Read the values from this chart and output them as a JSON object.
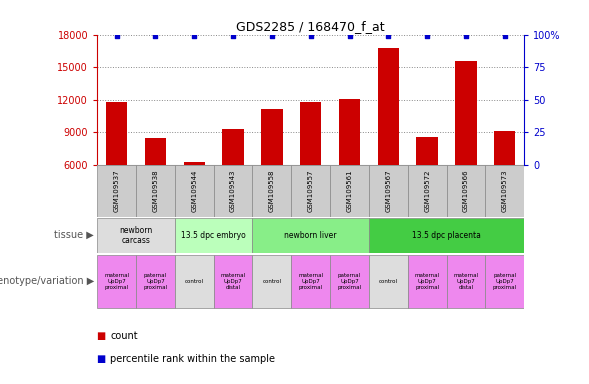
{
  "title": "GDS2285 / 168470_f_at",
  "samples": [
    "GSM109537",
    "GSM109538",
    "GSM109544",
    "GSM109543",
    "GSM109558",
    "GSM109557",
    "GSM109561",
    "GSM109567",
    "GSM109572",
    "GSM109566",
    "GSM109573"
  ],
  "counts": [
    11800,
    8500,
    6300,
    9300,
    11200,
    11800,
    12100,
    16800,
    8600,
    15600,
    9100
  ],
  "percentiles": [
    99,
    99,
    99,
    99,
    99,
    99,
    99,
    99,
    99,
    99,
    99
  ],
  "ylim_left": [
    6000,
    18000
  ],
  "ylim_right": [
    0,
    100
  ],
  "yticks_left": [
    6000,
    9000,
    12000,
    15000,
    18000
  ],
  "yticks_right": [
    0,
    25,
    50,
    75,
    100
  ],
  "bar_color": "#cc0000",
  "percentile_color": "#0000cc",
  "bar_baseline": 6000,
  "tissue_groups": [
    {
      "label": "newborn\ncarcass",
      "start": 0,
      "end": 2,
      "color": "#dddddd"
    },
    {
      "label": "13.5 dpc embryo",
      "start": 2,
      "end": 4,
      "color": "#bbffbb"
    },
    {
      "label": "newborn liver",
      "start": 4,
      "end": 7,
      "color": "#88ee88"
    },
    {
      "label": "13.5 dpc placenta",
      "start": 7,
      "end": 11,
      "color": "#44cc44"
    }
  ],
  "genotype_groups": [
    {
      "label": "maternal\nUpDp7\nproximal",
      "start": 0,
      "end": 1,
      "color": "#ee88ee"
    },
    {
      "label": "paternal\nUpDp7\nproximal",
      "start": 1,
      "end": 2,
      "color": "#ee88ee"
    },
    {
      "label": "control",
      "start": 2,
      "end": 3,
      "color": "#dddddd"
    },
    {
      "label": "maternal\nUpDp7\ndistal",
      "start": 3,
      "end": 4,
      "color": "#ee88ee"
    },
    {
      "label": "control",
      "start": 4,
      "end": 5,
      "color": "#dddddd"
    },
    {
      "label": "maternal\nUpDp7\nproximal",
      "start": 5,
      "end": 6,
      "color": "#ee88ee"
    },
    {
      "label": "paternal\nUpDp7\nproximal",
      "start": 6,
      "end": 7,
      "color": "#ee88ee"
    },
    {
      "label": "control",
      "start": 7,
      "end": 8,
      "color": "#dddddd"
    },
    {
      "label": "maternal\nUpDp7\nproximal",
      "start": 8,
      "end": 9,
      "color": "#ee88ee"
    },
    {
      "label": "maternal\nUpDp7\ndistal",
      "start": 9,
      "end": 10,
      "color": "#ee88ee"
    },
    {
      "label": "paternal\nUpDp7\nproximal",
      "start": 10,
      "end": 11,
      "color": "#ee88ee"
    }
  ],
  "sample_bg_color": "#cccccc",
  "left_label_color": "#cc0000",
  "right_label_color": "#0000cc",
  "dotted_grid_color": "#888888",
  "axis_bg_color": "#ffffff",
  "tissue_label": "tissue",
  "genotype_label": "genotype/variation",
  "legend_count_label": "count",
  "legend_percentile_label": "percentile rank within the sample"
}
